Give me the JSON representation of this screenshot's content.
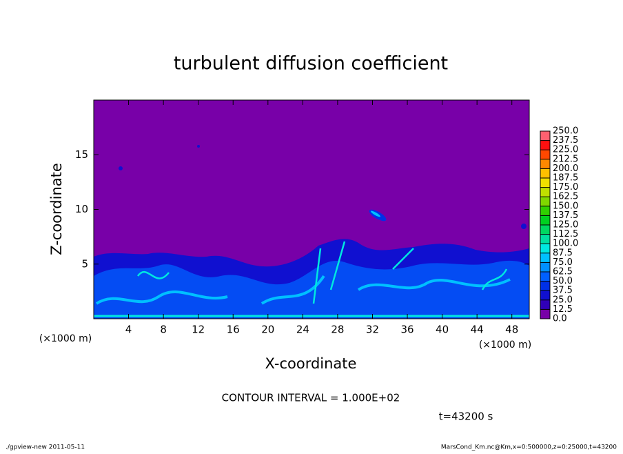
{
  "chart_data": {
    "type": "contour",
    "title": "turbulent diffusion coefficient",
    "x_label": "X-coordinate",
    "y_label": "Z-coordinate",
    "x_unit": "(×1000 m)",
    "xlim": [
      0,
      50
    ],
    "xticks": [
      4,
      8,
      12,
      16,
      20,
      24,
      28,
      32,
      36,
      40,
      44,
      48
    ],
    "ylim": [
      0,
      20
    ],
    "yticks": [
      5,
      10,
      15
    ],
    "colorbar": {
      "levels": [
        {
          "value": 0,
          "label": "0.0"
        },
        12.5,
        {
          "value": 25,
          "label": "25.0"
        },
        37.5,
        {
          "value": 50,
          "label": "50.0"
        },
        62.5,
        {
          "value": 75,
          "label": "75.0"
        },
        87.5,
        {
          "value": 100,
          "label": "100.0"
        },
        112.5,
        {
          "value": 125,
          "label": "125.0"
        },
        137.5,
        {
          "value": 150,
          "label": "150.0"
        },
        162.5,
        {
          "value": 175,
          "label": "175.0"
        },
        187.5,
        {
          "value": 200,
          "label": "200.0"
        },
        212.5,
        {
          "value": 225,
          "label": "225.0"
        },
        237.5,
        {
          "value": 250,
          "label": "250.0"
        }
      ],
      "colors": [
        "#7800a8",
        "#3000b8",
        "#1010d0",
        "#0030e8",
        "#0060ff",
        "#0090ff",
        "#00c0ff",
        "#00e8e0",
        "#00e0a0",
        "#00d860",
        "#00d020",
        "#30d000",
        "#80d800",
        "#c0e000",
        "#f0e000",
        "#ffc000",
        "#ff8800",
        "#ff4800",
        "#ff1010",
        "#ff6070"
      ]
    },
    "contour_interval": "CONTOUR INTERVAL = 1.000E+02",
    "time": "t=43200 s",
    "footer_left": "./gpview-new   2011-05-11",
    "footer_right": "MarsCond_Km.nc@Km,x=0:500000,z=0:25000,t=43200"
  }
}
